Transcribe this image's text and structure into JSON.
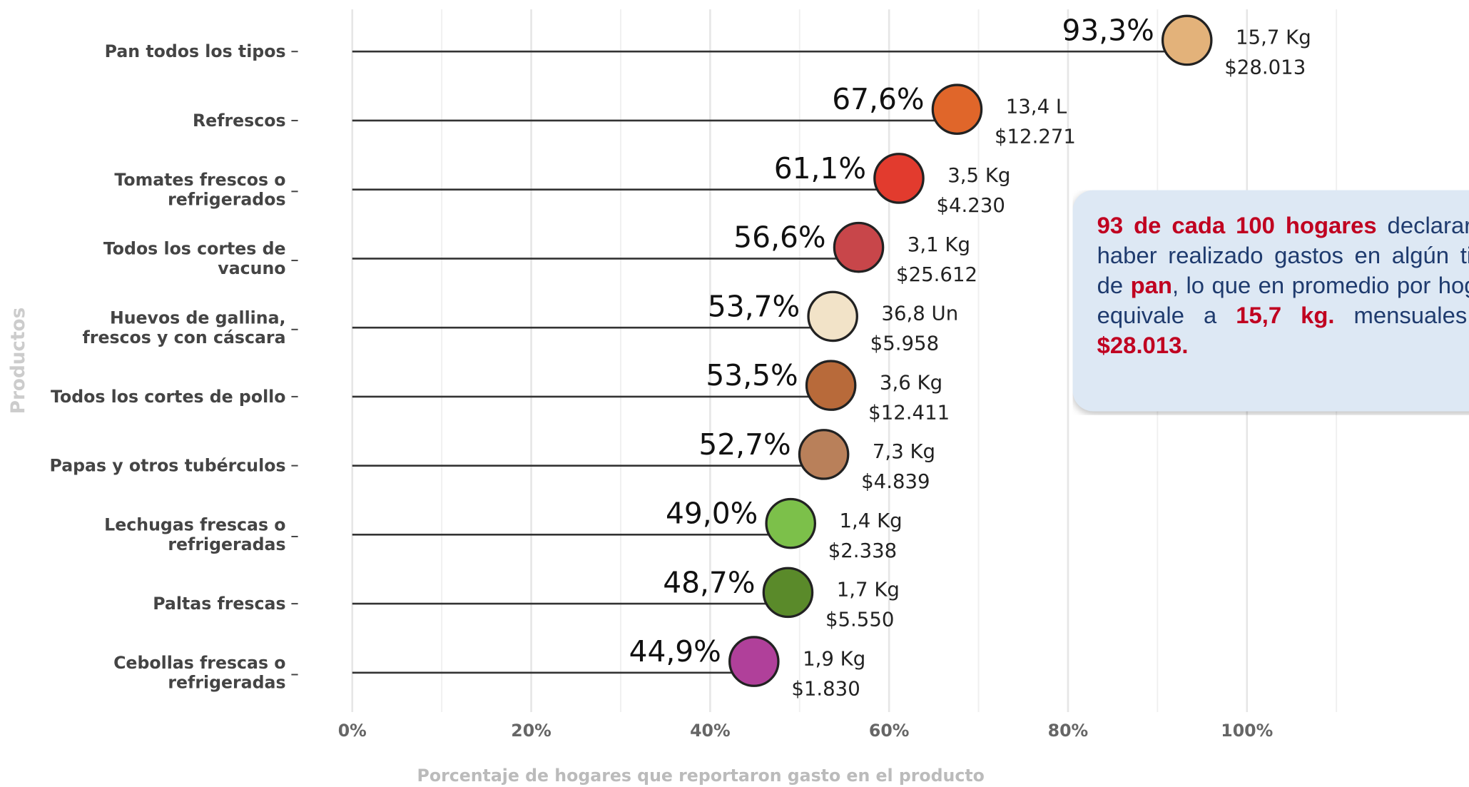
{
  "chart_data": {
    "type": "lollipop",
    "categories": [
      "Pan todos los tipos",
      "Refrescos",
      "Tomates frescos o\nrefrigerados",
      "Todos los cortes de\nvacuno",
      "Huevos de gallina,\nfrescos y con cáscara",
      "Todos los cortes de pollo",
      "Papas y otros tubérculos",
      "Lechugas frescas o\nrefrigeradas",
      "Paltas frescas",
      "Cebollas frescas o\nrefrigeradas"
    ],
    "values": [
      93.3,
      67.6,
      61.1,
      56.6,
      53.7,
      53.5,
      52.7,
      49.0,
      48.7,
      44.9
    ],
    "value_labels": [
      "93,3%",
      "67,6%",
      "61,1%",
      "56,6%",
      "53,7%",
      "53,5%",
      "52,7%",
      "49,0%",
      "48,7%",
      "44,9%"
    ],
    "quantity_labels": [
      "15,7 Kg",
      "13,4 L",
      "3,5 Kg",
      "3,1 Kg",
      "36,8 Un",
      "3,6 Kg",
      "7,3 Kg",
      "1,4 Kg",
      "1,7 Kg",
      "1,9 Kg"
    ],
    "price_labels": [
      "$28.013",
      "$12.271",
      "$4.230",
      "$25.612",
      "$5.958",
      "$12.411",
      "$4.839",
      "$2.338",
      "$5.550",
      "$1.830"
    ],
    "icon_colors": [
      "#e3b27a",
      "#e0662a",
      "#e23b2e",
      "#c8464a",
      "#f2e3c8",
      "#b86a3a",
      "#b9805a",
      "#7cc04a",
      "#5a8a2a",
      "#b0409a"
    ],
    "color": "#333333",
    "xlabel": "Porcentaje de hogares que reportaron gasto en el producto",
    "ylabel": "Productos",
    "xlim": [
      0,
      125
    ],
    "xticks": [
      {
        "value": 0,
        "label": "0%"
      },
      {
        "value": 20,
        "label": "20%"
      },
      {
        "value": 40,
        "label": "40%"
      },
      {
        "value": 60,
        "label": "60%"
      },
      {
        "value": 80,
        "label": "80%"
      },
      {
        "value": 100,
        "label": "100%"
      }
    ],
    "grid": true,
    "annotation": [
      {
        "text": "93 de cada 100 hogares",
        "highlight": true
      },
      {
        "text": " declararon haber realizado gastos en algún tipo de "
      },
      {
        "text": "pan",
        "highlight": true
      },
      {
        "text": ", lo que en promedio por hogar equivale a "
      },
      {
        "text": "15,7 kg.",
        "highlight": true
      },
      {
        "text": " mensuales y "
      },
      {
        "text": "$28.013.",
        "highlight": true
      }
    ]
  }
}
